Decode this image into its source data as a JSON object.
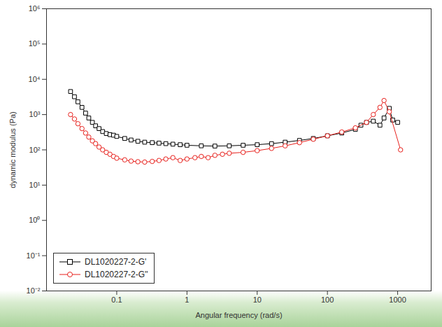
{
  "chart_data": {
    "type": "line",
    "x_label": "Angular frequency (rad/s)",
    "y_label": "dynamic modulus (Pa)",
    "log": true,
    "xlim": [
      0.01,
      3000
    ],
    "ylim": [
      0.01,
      1000000
    ],
    "xticks": [
      0.1,
      1,
      10,
      100,
      1000
    ],
    "yticks": [
      {
        "value": 0.01,
        "label": "10⁻²"
      },
      {
        "value": 0.1,
        "label": "10⁻¹"
      },
      {
        "value": 1,
        "label": "10⁰"
      },
      {
        "value": 10,
        "label": "10¹"
      },
      {
        "value": 100,
        "label": "10²"
      },
      {
        "value": 1000,
        "label": "10³"
      },
      {
        "value": 10000,
        "label": "10⁴"
      },
      {
        "value": 100000,
        "label": "10⁵"
      },
      {
        "value": 1000000,
        "label": "10⁶"
      }
    ],
    "legend": "bottom-left",
    "series": [
      {
        "name": "DL1020227-2-G'",
        "color": "#000000",
        "marker": "square",
        "line_style": "solid",
        "x": [
          0.022,
          0.025,
          0.028,
          0.032,
          0.036,
          0.04,
          0.045,
          0.05,
          0.056,
          0.063,
          0.071,
          0.08,
          0.09,
          0.1,
          0.13,
          0.16,
          0.2,
          0.25,
          0.32,
          0.4,
          0.5,
          0.63,
          0.8,
          1,
          1.6,
          2.5,
          4,
          6.3,
          10,
          16,
          25,
          40,
          63,
          100,
          160,
          250,
          300,
          360,
          450,
          560,
          640,
          760,
          850,
          1000
        ],
        "values": [
          4500,
          3200,
          2300,
          1600,
          1100,
          800,
          600,
          480,
          400,
          330,
          290,
          270,
          260,
          240,
          210,
          190,
          175,
          165,
          160,
          155,
          150,
          145,
          140,
          135,
          130,
          128,
          130,
          135,
          140,
          150,
          165,
          185,
          210,
          250,
          300,
          380,
          500,
          600,
          650,
          500,
          800,
          1500,
          700,
          600
        ]
      },
      {
        "name": "DL1020227-2-G''",
        "color": "#e8211d",
        "marker": "circle",
        "line_style": "solid",
        "x": [
          0.022,
          0.025,
          0.028,
          0.032,
          0.036,
          0.04,
          0.045,
          0.05,
          0.056,
          0.063,
          0.071,
          0.08,
          0.09,
          0.1,
          0.13,
          0.16,
          0.2,
          0.25,
          0.32,
          0.4,
          0.5,
          0.63,
          0.8,
          1,
          1.3,
          1.6,
          2,
          2.5,
          3.2,
          4,
          6.3,
          10,
          16,
          25,
          40,
          63,
          100,
          160,
          250,
          360,
          450,
          560,
          640,
          760,
          1100
        ],
        "values": [
          1000,
          750,
          550,
          400,
          300,
          230,
          180,
          150,
          120,
          100,
          85,
          75,
          65,
          58,
          52,
          48,
          46,
          45,
          47,
          50,
          55,
          60,
          50,
          55,
          60,
          65,
          60,
          70,
          75,
          80,
          85,
          95,
          110,
          130,
          160,
          200,
          250,
          320,
          420,
          600,
          1000,
          1600,
          2500,
          1200,
          100
        ]
      }
    ]
  }
}
